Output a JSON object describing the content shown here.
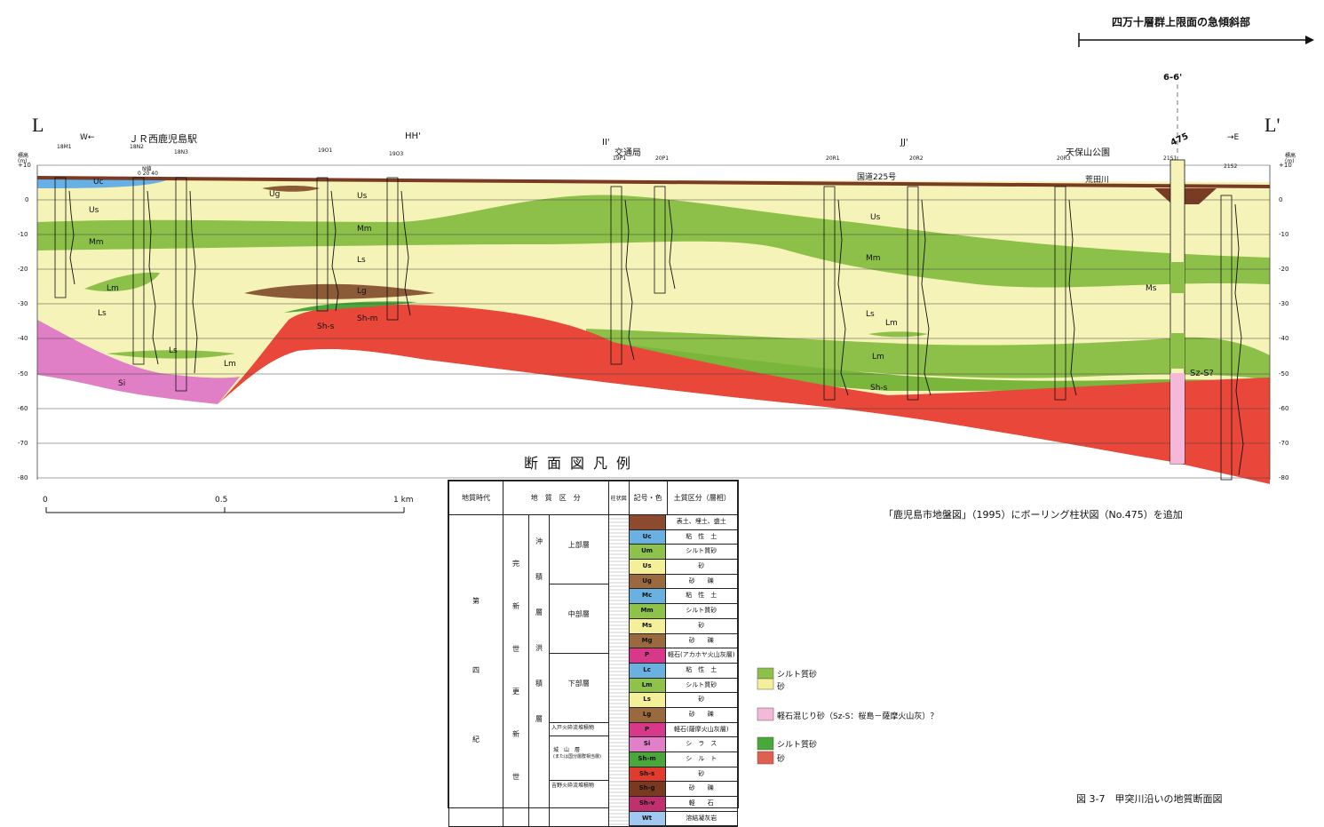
{
  "top_label": "四万十層群上限面の急傾斜部",
  "section_point_label": "6-6'",
  "left_end": "L",
  "right_end": "L'",
  "west_label": "W←",
  "east_label": "→E",
  "station_label": "ＪＲ西鹿児島駅",
  "cross_lines": [
    "HH'",
    "II'",
    "JJ'"
  ],
  "landmarks": [
    "交通局",
    "天保山公園",
    "国道225号",
    "荒田川"
  ],
  "boring_number": "475",
  "boreholes": [
    "18M1",
    "18N2",
    "18N3",
    "19O1",
    "19O3",
    "19P1",
    "20P1",
    "20R1",
    "20R2",
    "20R3",
    "21S1",
    "21S2"
  ],
  "n_value_label": "N値",
  "n_value_ticks": "0 20 40",
  "y_axis_title": "標高",
  "y_axis_unit": "(m)",
  "y_ticks": [
    "+10",
    "0",
    "-10",
    "-20",
    "-30",
    "-40",
    "-50",
    "-60",
    "-70",
    "-80"
  ],
  "layer_labels": [
    "Uc",
    "Us",
    "Mm",
    "Ls",
    "Lm",
    "Ls",
    "Lm",
    "Si",
    "Ug",
    "Us",
    "Mm",
    "Ls",
    "Lg",
    "Sh-s",
    "Sh-m",
    "Us",
    "Mm",
    "Ls",
    "Lm",
    "Lm",
    "Sh-s",
    "Ms",
    "Sz-S?"
  ],
  "legend_title": "断面図凡例",
  "scale": {
    "zero": "0",
    "mid": "0.5",
    "end": "1 km"
  },
  "note": "「鹿児島市地盤図」（1995）にボーリング柱状図（No.475）を追加",
  "figure_caption": "図 3-7　甲突川沿いの地質断面図",
  "legend_headers": [
    "地質時代",
    "地　質　区　分",
    "柱状図",
    "記号・色",
    "土質区分（層相）"
  ],
  "legend_era": [
    "第",
    "四",
    "紀"
  ],
  "legend_epoch_holocene": [
    "完",
    "新",
    "世"
  ],
  "legend_epoch_pleistocene": [
    "更",
    "新",
    "世"
  ],
  "legend_group_alluvium": [
    "沖",
    "積",
    "層"
  ],
  "legend_group_diluvium": [
    "洪",
    "積",
    "層"
  ],
  "legend_subgroups": [
    "上部層",
    "中部層",
    "下部層"
  ],
  "legend_named_units": {
    "ito": "入戸火砕流堆積物",
    "shiroyama": "城　山　層",
    "shiroyama_note": "(または国分層群相当層)",
    "yoshino": "吉野火砕流堆積物"
  },
  "legend_rows": [
    {
      "code": "",
      "desc": "表土、埋土、盛土",
      "color": "#8c4a2e"
    },
    {
      "code": "Uc",
      "desc": "粘　性　土",
      "color": "#6ab0e0"
    },
    {
      "code": "Um",
      "desc": "シルト質砂",
      "color": "#8fc24a"
    },
    {
      "code": "Us",
      "desc": "砂",
      "color": "#f3f099"
    },
    {
      "code": "Ug",
      "desc": "砂　　礫",
      "color": "#9a6a3e"
    },
    {
      "code": "Mc",
      "desc": "粘　性　土",
      "color": "#6ab0e0"
    },
    {
      "code": "Mm",
      "desc": "シルト質砂",
      "color": "#8fc24a"
    },
    {
      "code": "Ms",
      "desc": "砂",
      "color": "#f3f099"
    },
    {
      "code": "Mg",
      "desc": "砂　　礫",
      "color": "#9a6a3e"
    },
    {
      "code": "P",
      "desc": "軽石(アカホヤ火山灰層)",
      "color": "#d8388a"
    },
    {
      "code": "Lc",
      "desc": "粘　性　土",
      "color": "#6ab0e0"
    },
    {
      "code": "Lm",
      "desc": "シルト質砂",
      "color": "#8fc24a"
    },
    {
      "code": "Ls",
      "desc": "砂",
      "color": "#f3f099"
    },
    {
      "code": "Lg",
      "desc": "砂　　礫",
      "color": "#9a6a3e"
    },
    {
      "code": "P",
      "desc": "軽石(薩摩火山灰層)",
      "color": "#d8388a"
    },
    {
      "code": "Si",
      "desc": "シ　ラ　ス",
      "color": "#e080c8"
    },
    {
      "code": "Sh-m",
      "desc": "シ　ル　ト",
      "color": "#4aa83a"
    },
    {
      "code": "Sh-s",
      "desc": "砂",
      "color": "#e03c2e"
    },
    {
      "code": "Sh-g",
      "desc": "砂　　礫",
      "color": "#7a3a20"
    },
    {
      "code": "Sh-v",
      "desc": "軽　　石",
      "color": "#c0306e"
    },
    {
      "code": "Wt",
      "desc": "溶結凝灰岩",
      "color": "#a0c8f0"
    }
  ],
  "extra_legend": [
    {
      "label": "シルト質砂",
      "color": "#8fc24a"
    },
    {
      "label": "砂",
      "color": "#f3f099"
    },
    {
      "label": "軽石混じり砂（Sz-S：桜島－薩摩火山灰）？",
      "color": "#f4b8d8"
    },
    {
      "label": "シルト質砂",
      "color": "#4aa83a"
    },
    {
      "label": "砂",
      "color": "#e06050"
    }
  ],
  "colors": {
    "sand": "#f6f3b8",
    "silty_sand": "#8cc048",
    "shirasu": "#e07ec6",
    "shiroyama_sand": "#e8473a",
    "gravel": "#8b5a36",
    "clay": "#66b0e6",
    "fill": "#7a3b24"
  }
}
